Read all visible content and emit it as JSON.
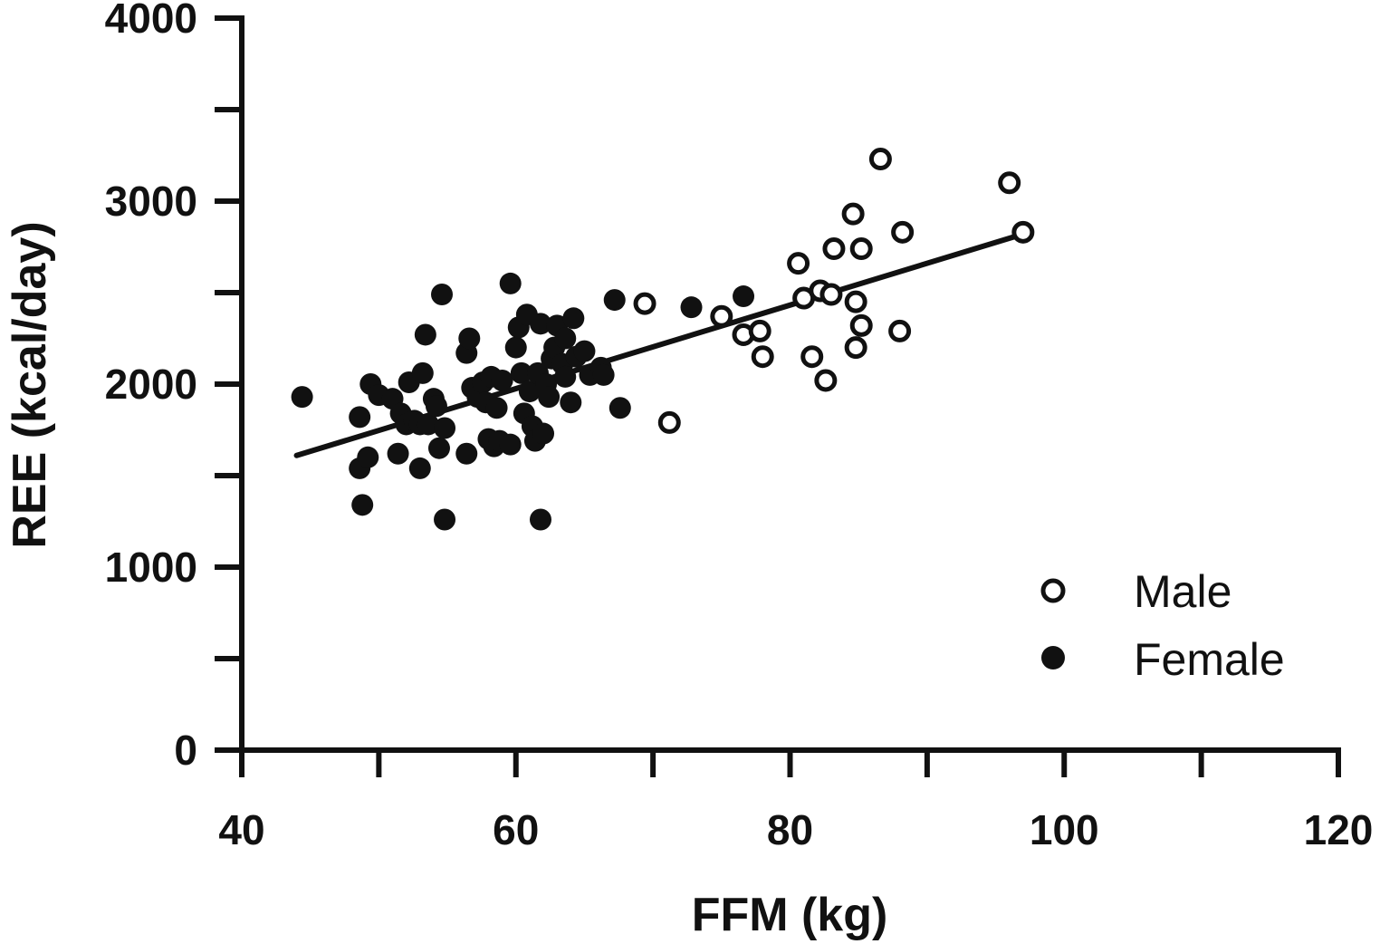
{
  "chart_data": {
    "type": "scatter",
    "xlabel": "FFM (kg)",
    "ylabel": "REE (kcal/day)",
    "xlim": [
      40,
      120
    ],
    "ylim": [
      0,
      4000
    ],
    "x_ticks": [
      "40",
      "60",
      "80",
      "100",
      "120"
    ],
    "y_ticks": [
      "0",
      "1000",
      "2000",
      "3000",
      "4000"
    ],
    "x_minor_step": 10,
    "y_minor_step": 500,
    "grid": false,
    "legend_position": "bottom-right",
    "series": [
      {
        "name": "Male",
        "marker": "open-circle",
        "points": [
          [
            69.4,
            2440
          ],
          [
            71.2,
            1790
          ],
          [
            75.0,
            2370
          ],
          [
            76.6,
            2270
          ],
          [
            77.8,
            2290
          ],
          [
            78.0,
            2150
          ],
          [
            80.6,
            2660
          ],
          [
            81.0,
            2470
          ],
          [
            81.6,
            2150
          ],
          [
            82.2,
            2510
          ],
          [
            82.6,
            2020
          ],
          [
            83.0,
            2490
          ],
          [
            83.2,
            2740
          ],
          [
            84.6,
            2930
          ],
          [
            84.8,
            2450
          ],
          [
            84.8,
            2200
          ],
          [
            85.2,
            2320
          ],
          [
            85.2,
            2740
          ],
          [
            86.6,
            3230
          ],
          [
            88.0,
            2290
          ],
          [
            88.2,
            2830
          ],
          [
            96.0,
            3100
          ],
          [
            97.0,
            2830
          ]
        ]
      },
      {
        "name": "Female",
        "marker": "filled-circle",
        "points": [
          [
            44.4,
            1930
          ],
          [
            48.6,
            1820
          ],
          [
            48.6,
            1540
          ],
          [
            48.8,
            1340
          ],
          [
            49.2,
            1600
          ],
          [
            49.4,
            2000
          ],
          [
            50.0,
            1940
          ],
          [
            51.0,
            1920
          ],
          [
            51.4,
            1620
          ],
          [
            51.6,
            1840
          ],
          [
            52.0,
            1780
          ],
          [
            52.2,
            2010
          ],
          [
            52.6,
            1800
          ],
          [
            53.0,
            1780
          ],
          [
            53.0,
            1540
          ],
          [
            53.2,
            2060
          ],
          [
            53.4,
            2270
          ],
          [
            53.6,
            1780
          ],
          [
            54.0,
            1920
          ],
          [
            54.2,
            1880
          ],
          [
            54.4,
            1650
          ],
          [
            54.6,
            2490
          ],
          [
            54.8,
            1760
          ],
          [
            54.8,
            1260
          ],
          [
            56.4,
            1620
          ],
          [
            56.4,
            2170
          ],
          [
            56.6,
            2250
          ],
          [
            56.8,
            1980
          ],
          [
            57.2,
            1930
          ],
          [
            57.6,
            2010
          ],
          [
            57.8,
            1900
          ],
          [
            58.0,
            1700
          ],
          [
            58.2,
            2040
          ],
          [
            58.4,
            1660
          ],
          [
            58.6,
            1870
          ],
          [
            58.8,
            1690
          ],
          [
            59.0,
            2020
          ],
          [
            59.6,
            2550
          ],
          [
            59.6,
            1670
          ],
          [
            60.0,
            2200
          ],
          [
            60.2,
            2310
          ],
          [
            60.4,
            2060
          ],
          [
            60.6,
            1840
          ],
          [
            60.8,
            2380
          ],
          [
            61.0,
            1960
          ],
          [
            61.2,
            1770
          ],
          [
            61.4,
            1690
          ],
          [
            61.6,
            2060
          ],
          [
            61.8,
            2330
          ],
          [
            61.8,
            1260
          ],
          [
            62.0,
            1730
          ],
          [
            62.2,
            2000
          ],
          [
            62.4,
            1930
          ],
          [
            62.6,
            2140
          ],
          [
            62.8,
            2200
          ],
          [
            63.0,
            2320
          ],
          [
            63.4,
            2110
          ],
          [
            63.6,
            2250
          ],
          [
            63.6,
            2040
          ],
          [
            64.0,
            1900
          ],
          [
            64.2,
            2360
          ],
          [
            64.4,
            2150
          ],
          [
            65.0,
            2180
          ],
          [
            65.4,
            2050
          ],
          [
            66.2,
            2090
          ],
          [
            66.4,
            2050
          ],
          [
            67.2,
            2460
          ],
          [
            67.6,
            1870
          ],
          [
            72.8,
            2420
          ],
          [
            76.6,
            2480
          ]
        ]
      }
    ],
    "regression_line": {
      "x": [
        44,
        97
      ],
      "y": [
        1610,
        2820
      ]
    }
  }
}
